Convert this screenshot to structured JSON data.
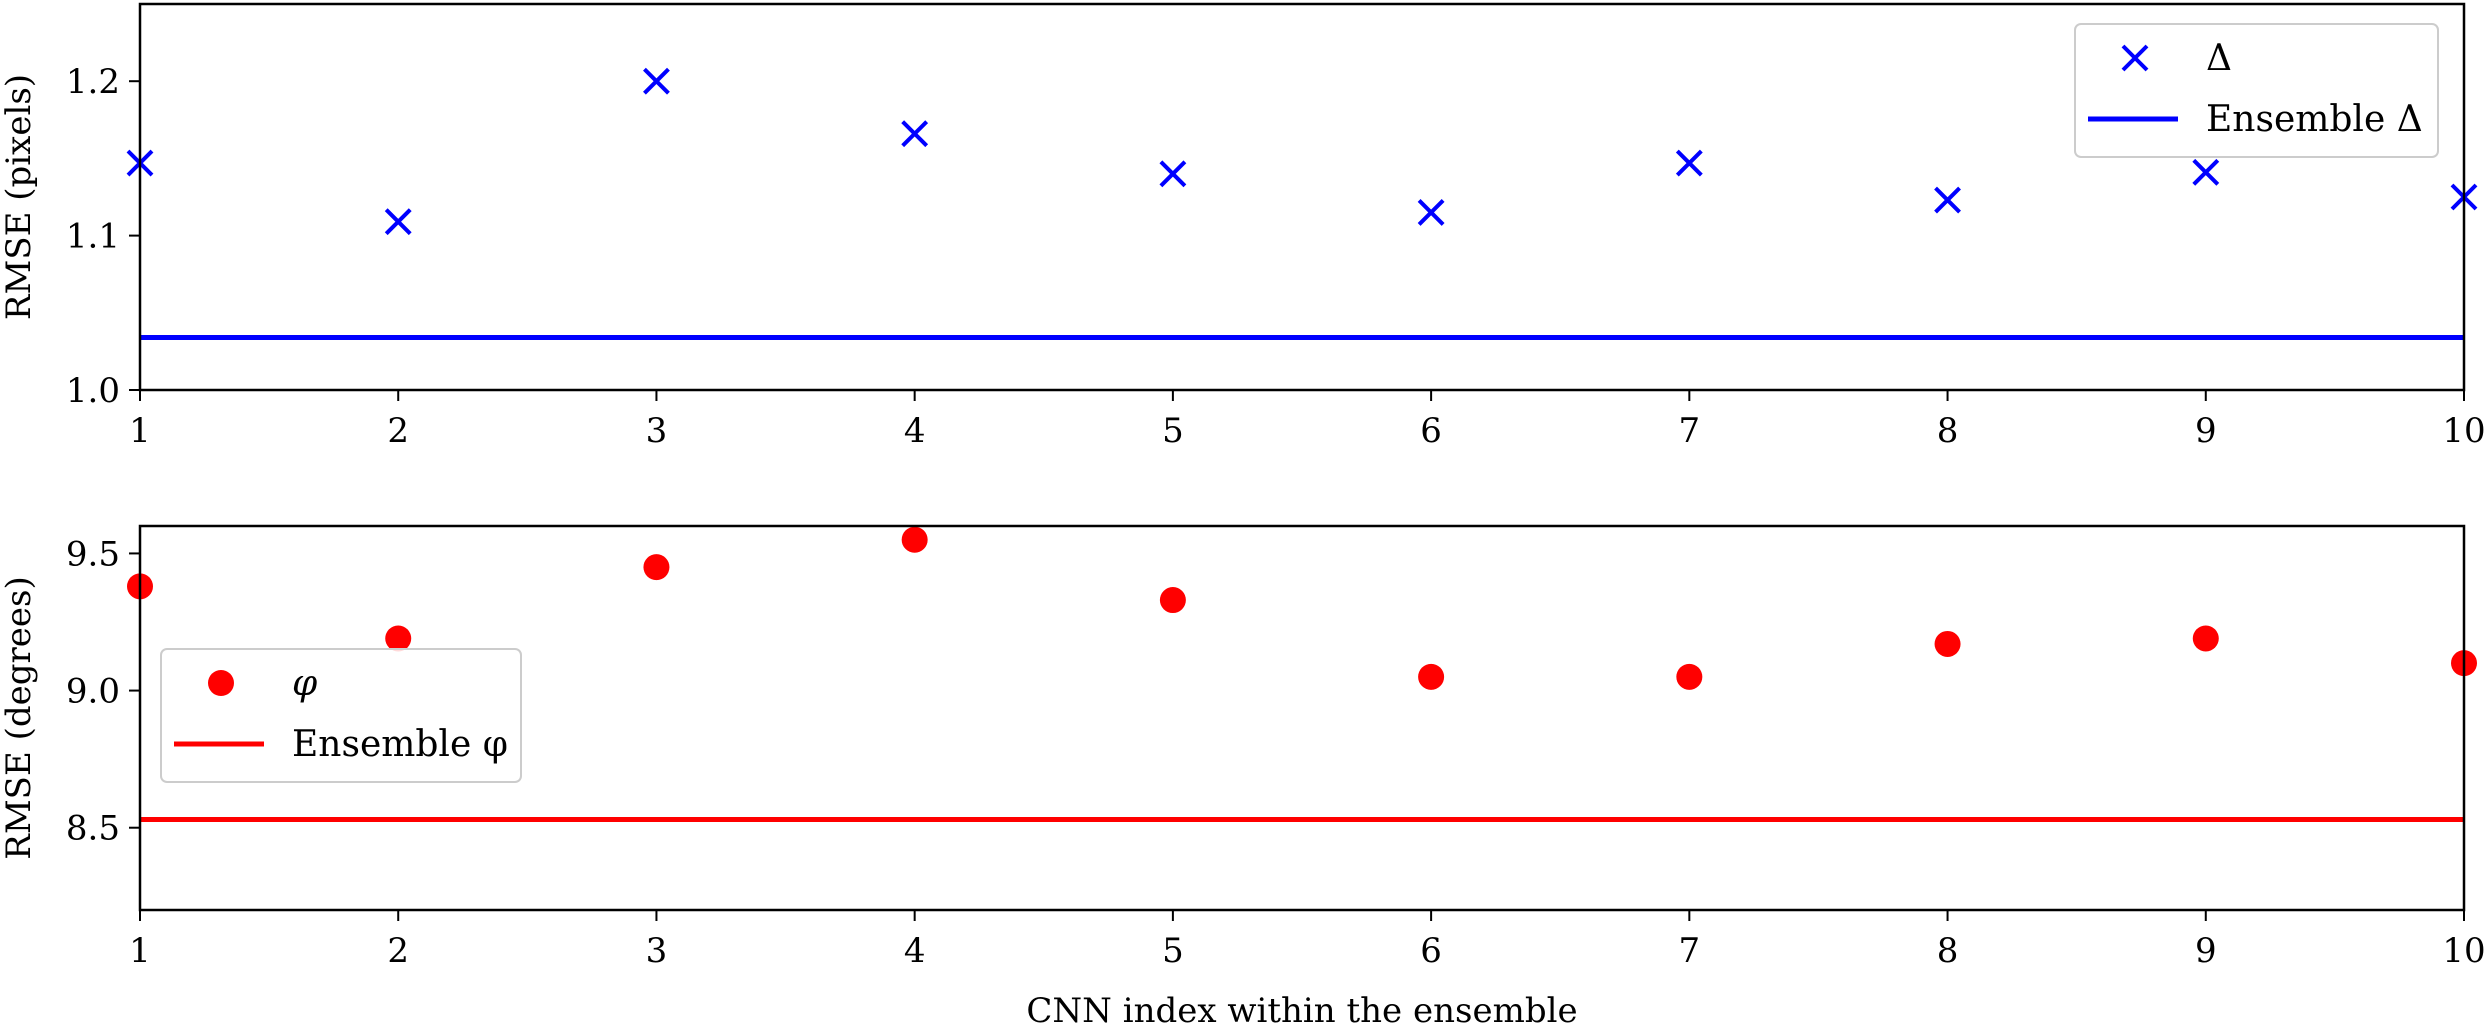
{
  "chart_data": [
    {
      "type": "scatter",
      "title": "",
      "xlabel": "",
      "ylabel": "RMSE (pixels)",
      "xlim": [
        1,
        10
      ],
      "ylim": [
        1.0,
        1.25
      ],
      "xticks": [
        "1",
        "2",
        "3",
        "4",
        "5",
        "6",
        "7",
        "8",
        "9",
        "10"
      ],
      "yticks": [
        "1.0",
        "1.1",
        "1.2"
      ],
      "grid": false,
      "legend_position": "upper-right",
      "series": [
        {
          "name": "Δ",
          "marker": "x",
          "color": "#0000ff",
          "x": [
            1,
            2,
            3,
            4,
            5,
            6,
            7,
            8,
            9,
            10
          ],
          "y": [
            1.147,
            1.109,
            1.2,
            1.166,
            1.14,
            1.115,
            1.147,
            1.123,
            1.141,
            1.125
          ]
        }
      ],
      "reference_lines": [
        {
          "name": "Ensemble Δ",
          "y": 1.034,
          "color": "#0000ff"
        }
      ]
    },
    {
      "type": "scatter",
      "title": "",
      "xlabel": "CNN index within the ensemble",
      "ylabel": "RMSE (degrees)",
      "xlim": [
        1,
        10
      ],
      "ylim": [
        8.2,
        9.6
      ],
      "xticks": [
        "1",
        "2",
        "3",
        "4",
        "5",
        "6",
        "7",
        "8",
        "9",
        "10"
      ],
      "yticks": [
        "8.5",
        "9.0",
        "9.5"
      ],
      "grid": false,
      "legend_position": "center-left",
      "series": [
        {
          "name": "φ",
          "marker": "circle",
          "color": "#ff0000",
          "x": [
            1,
            2,
            3,
            4,
            5,
            6,
            7,
            8,
            9,
            10
          ],
          "y": [
            9.38,
            9.19,
            9.45,
            9.55,
            9.33,
            9.05,
            9.05,
            9.17,
            9.19,
            9.1
          ]
        }
      ],
      "reference_lines": [
        {
          "name": "Ensemble φ",
          "y": 8.53,
          "color": "#ff0000"
        }
      ]
    }
  ]
}
